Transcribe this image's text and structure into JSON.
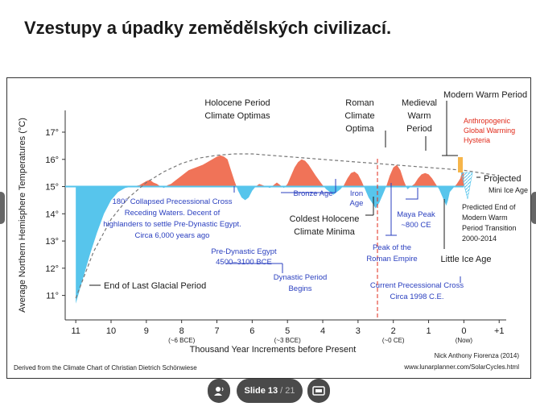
{
  "slide_title": "Vzestupy a úpadky zemědělských civilizací.",
  "toolbar": {
    "slide_label": "Slide 13",
    "slide_total": "/ 21"
  },
  "chart_data": {
    "type": "area",
    "ylabel": "Average Northern Hemisphere Temperatures (°C)",
    "xlabel": "Thousand Year Increments before Present",
    "x_ticks": [
      "11",
      "10",
      "9",
      "8",
      "7",
      "6",
      "5",
      "4",
      "3",
      "2",
      "1",
      "0",
      "+1"
    ],
    "x_tick_values": [
      11,
      10,
      9,
      8,
      7,
      6,
      5,
      4,
      3,
      2,
      1,
      0,
      -1
    ],
    "x_sub_ticks": [
      {
        "x": 8,
        "label": "(~6 BCE)"
      },
      {
        "x": 5,
        "label": "(~3 BCE)"
      },
      {
        "x": 2,
        "label": "(~0 CE)"
      },
      {
        "x": 0,
        "label": "(Now)"
      }
    ],
    "y_ticks": [
      "17°",
      "16°",
      "15°",
      "14°",
      "13°",
      "12°",
      "11°"
    ],
    "y_tick_values": [
      17,
      16,
      15,
      14,
      13,
      12,
      11
    ],
    "xlim": [
      11.3,
      -1.2
    ],
    "ylim": [
      10.1,
      17.8
    ],
    "baseline": 15,
    "temperature": {
      "x": [
        11.0,
        10.8,
        10.6,
        10.4,
        10.2,
        10.0,
        9.8,
        9.6,
        9.4,
        9.2,
        9.0,
        8.9,
        8.8,
        8.7,
        8.6,
        8.5,
        8.4,
        8.3,
        8.2,
        8.0,
        7.8,
        7.6,
        7.4,
        7.2,
        7.0,
        6.9,
        6.8,
        6.7,
        6.6,
        6.5,
        6.4,
        6.3,
        6.2,
        6.1,
        6.0,
        5.9,
        5.8,
        5.6,
        5.5,
        5.4,
        5.3,
        5.2,
        5.1,
        5.0,
        4.9,
        4.8,
        4.7,
        4.6,
        4.5,
        4.4,
        4.3,
        4.2,
        4.0,
        3.9,
        3.8,
        3.7,
        3.6,
        3.5,
        3.4,
        3.3,
        3.2,
        3.1,
        3.0,
        2.9,
        2.8,
        2.7,
        2.6,
        2.5,
        2.4,
        2.3,
        2.2,
        2.1,
        2.0,
        1.9,
        1.8,
        1.7,
        1.6,
        1.5,
        1.4,
        1.3,
        1.2,
        1.1,
        1.0,
        0.9,
        0.8,
        0.7,
        0.6,
        0.5,
        0.45,
        0.4,
        0.3,
        0.2,
        0.1,
        0.05,
        0.0
      ],
      "y": [
        10.7,
        11.6,
        12.5,
        13.3,
        14.0,
        14.5,
        14.8,
        14.95,
        15.0,
        15.05,
        15.2,
        15.25,
        15.15,
        15.1,
        15.0,
        14.95,
        15.05,
        15.1,
        15.2,
        15.4,
        15.6,
        15.7,
        15.8,
        15.95,
        16.1,
        16.15,
        16.1,
        16.0,
        15.6,
        15.2,
        14.85,
        14.6,
        14.5,
        14.6,
        14.85,
        15.0,
        15.1,
        15.0,
        14.95,
        15.05,
        15.15,
        15.05,
        14.95,
        15.1,
        15.4,
        15.7,
        15.9,
        16.0,
        15.95,
        15.8,
        15.6,
        15.4,
        15.05,
        14.9,
        14.8,
        14.7,
        14.8,
        14.9,
        15.05,
        15.3,
        15.5,
        15.55,
        15.45,
        15.2,
        14.9,
        14.6,
        14.4,
        14.2,
        14.4,
        14.7,
        15.0,
        15.4,
        15.7,
        15.8,
        15.6,
        15.2,
        14.9,
        15.0,
        15.1,
        15.3,
        15.45,
        15.5,
        15.45,
        15.3,
        15.1,
        14.9,
        14.6,
        14.3,
        14.5,
        14.8,
        14.95,
        15.1,
        15.3,
        15.55,
        15.5
      ]
    },
    "trend": {
      "x": [
        11.0,
        10.5,
        10.0,
        9.5,
        9.0,
        8.5,
        8.0,
        7.5,
        7.0,
        6.5,
        6.0,
        5.5,
        5.0,
        4.5,
        4.0,
        3.5,
        3.0,
        2.5,
        2.0,
        1.5,
        1.0,
        0.5,
        0.0,
        -0.5,
        -1.0
      ],
      "y": [
        10.9,
        12.6,
        13.8,
        14.6,
        15.15,
        15.55,
        15.85,
        16.05,
        16.15,
        16.2,
        16.2,
        16.15,
        16.1,
        16.05,
        16.0,
        15.95,
        15.9,
        15.85,
        15.8,
        15.75,
        15.7,
        15.65,
        15.6,
        15.5,
        15.4
      ]
    },
    "annotations": [
      "Holocene Period",
      "Climate Optimas",
      "Roman",
      "Climate",
      "Optima",
      "Medieval",
      "Warm",
      "Period",
      "Modern Warm Period",
      "Anthropogenic",
      "Global Warming",
      "Hysteria",
      "Projected",
      "Mini Ice Age",
      "Predicted End of",
      "Modern Warm",
      "Period Transition",
      "2000-2014",
      "180° Collapsed Precessional Cross",
      "Receding Waters. Decent of",
      "highlanders to settle Pre-Dynastic Egypt.",
      "Circa 6,000 years ago",
      "Bronze Age",
      "Iron",
      "Age",
      "Coldest Holocene",
      "Climate Minima",
      "Maya Peak",
      "~800 CE",
      "Peak of the",
      "Roman Empire",
      "Little Ice Age",
      "Pre-Dynastic Egypt",
      "4500–3100 BCE",
      "Dynastic Period",
      "Begins",
      "Current Precessional Cross",
      "Circa 1998 C.E.",
      "End of Last Glacial Period"
    ],
    "credit_left": "Derived from the Climate Chart of Christian Dietrich Schönwiese",
    "credit_right_1": "Nick Anthony Fiorenza (2014)",
    "credit_right_2": "www.lunarplanner.com/SolarCycles.html",
    "colors": {
      "warm": "#f07358",
      "cold": "#57c5ec",
      "annotation_blue": "#2a3fbf",
      "annotation_red": "#e02a1a",
      "text": "#1a1a1a",
      "current_line": "#e02a1a"
    }
  }
}
